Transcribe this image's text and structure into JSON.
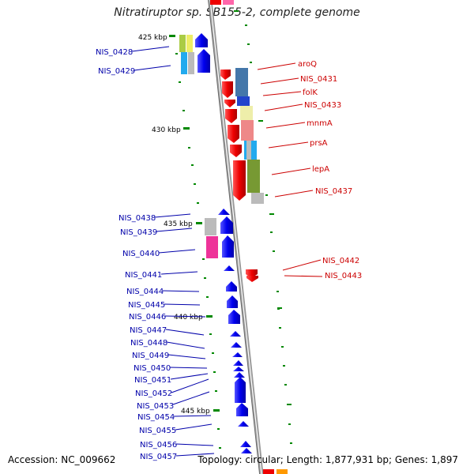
{
  "title": "Nitratiruptor sp. SB155-2, complete genome",
  "accession": "Accession: NC_009662",
  "summary": "Topology: circular; Length: 1,877,931 bp; Genes: 1,897",
  "kbp_labels": [
    "425 kbp",
    "430 kbp",
    "435 kbp",
    "440 kbp",
    "445 kbp"
  ],
  "left_genes": [
    "NIS_0428",
    "NIS_0429",
    "NIS_0438",
    "NIS_0439",
    "NIS_0440",
    "NIS_0441",
    "NIS_0444",
    "NIS_0445",
    "NIS_0446",
    "NIS_0447",
    "NIS_0448",
    "NIS_0449",
    "NIS_0450",
    "NIS_0451",
    "NIS_0452",
    "NIS_0453",
    "NIS_0454",
    "NIS_0455",
    "NIS_0456",
    "NIS_0457"
  ],
  "right_genes": [
    "aroQ",
    "NIS_0431",
    "folK",
    "NIS_0433",
    "mnmA",
    "prsA",
    "lepA",
    "NIS_0437",
    "NIS_0442",
    "NIS_0443"
  ],
  "colors": {
    "forward_strand": "#0000ee",
    "reverse_strand": "#ee0000",
    "backbone": "#888888",
    "tick": "#008800",
    "left_label": "#0000aa",
    "right_label": "#cc0000"
  }
}
